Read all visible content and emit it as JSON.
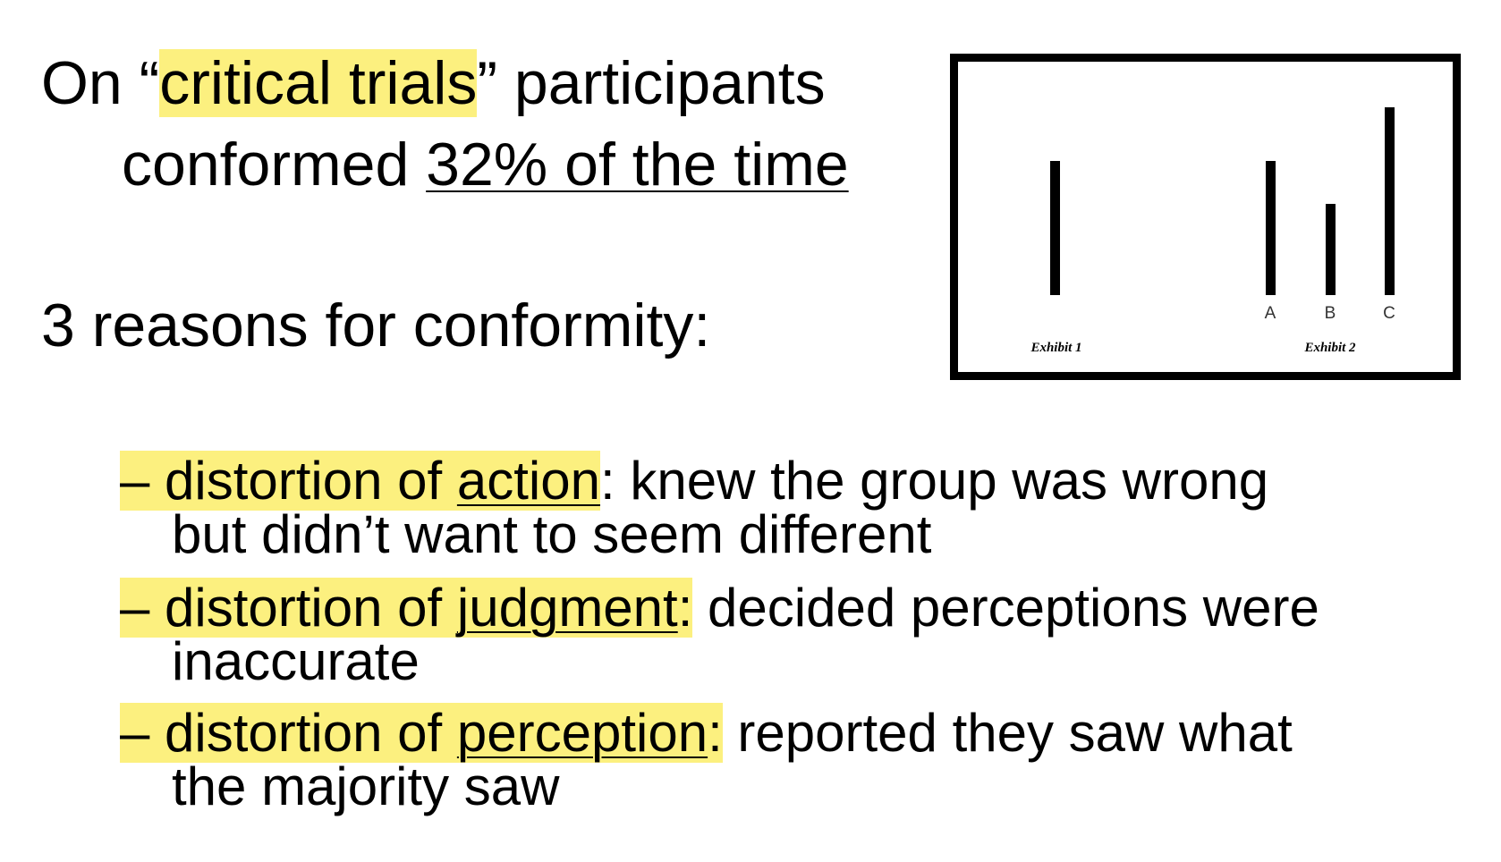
{
  "heading": {
    "line1_pre": "On “",
    "line1_highlight": "critical trials",
    "line1_post": "” participants",
    "line2_pre": "conformed ",
    "line2_underlined": "32% of the time"
  },
  "reasons_heading": "3 reasons for conformity:",
  "reasons": [
    {
      "dash": "– ",
      "prefix": "distortion of ",
      "term": "action",
      "colon": ":",
      "rest_first": " knew the group was wrong",
      "rest_cont": "but didn’t want to seem different"
    },
    {
      "dash": "– ",
      "prefix": "distortion of ",
      "term": "judgment",
      "colon": ":",
      "rest_first": "  decided perceptions were",
      "rest_cont": "inaccurate"
    },
    {
      "dash": "– ",
      "prefix": "distortion of ",
      "term": "perception",
      "colon": ":",
      "rest_first": "  reported they saw what",
      "rest_cont": "the majority saw"
    }
  ],
  "figure": {
    "exhibit1_label": "Exhibit 1",
    "exhibit2_label": "Exhibit 2",
    "line_labels": [
      "A",
      "B",
      "C"
    ]
  }
}
